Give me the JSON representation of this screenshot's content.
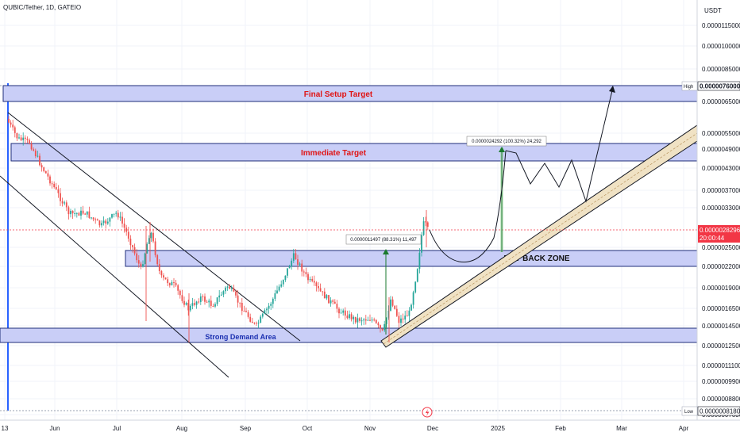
{
  "header": {
    "symbol_title": "QUBIC/Tether, 1D, GATEIO"
  },
  "price_axis": {
    "currency": "USDT",
    "ticks": [
      {
        "label": "0.0000115000",
        "value": 115
      },
      {
        "label": "0.0000100000",
        "value": 100
      },
      {
        "label": "0.0000085000",
        "value": 85
      },
      {
        "label": "0.0000076000",
        "value": 76
      },
      {
        "label": "0.0000065000",
        "value": 65
      },
      {
        "label": "0.0000055000",
        "value": 55
      },
      {
        "label": "0.0000049000",
        "value": 49
      },
      {
        "label": "0.0000043000",
        "value": 43
      },
      {
        "label": "0.0000037000",
        "value": 37
      },
      {
        "label": "0.0000033000",
        "value": 33
      },
      {
        "label": "0.0000025000",
        "value": 25
      },
      {
        "label": "0.0000022000",
        "value": 22
      },
      {
        "label": "0.0000019000",
        "value": 19
      },
      {
        "label": "0.0000016500",
        "value": 16.5
      },
      {
        "label": "0.0000014500",
        "value": 14.5
      },
      {
        "label": "0.0000012500",
        "value": 12.5
      },
      {
        "label": "0.0000011100",
        "value": 11.1
      },
      {
        "label": "0.0000009900",
        "value": 9.9
      },
      {
        "label": "0.0000008800",
        "value": 8.8
      },
      {
        "label": "0.0000007830",
        "value": 7.83
      }
    ],
    "high_label": "High",
    "high_value_label": "0.0000076000",
    "low_label": "Low",
    "low_value_label": "0.0000008180",
    "current_price_label": "0.0000028296",
    "countdown_label": "20:00:44",
    "current_price_color": "#f23645"
  },
  "time_axis": {
    "labels": [
      "13",
      "Jun",
      "Jul",
      "Aug",
      "Sep",
      "Oct",
      "Nov",
      "Dec",
      "2025",
      "Feb",
      "Mar",
      "Apr"
    ]
  },
  "zones": {
    "final_target": "Final Setup Target",
    "immediate_target": "Immediate Target",
    "buy_back": "BUY BACK ZONE",
    "demand": "Strong Demand Area"
  },
  "measurements": {
    "upper": "0.0000024292 (100.32%) 24,292",
    "lower": "0.0000011497 (88.31%) 11,497"
  },
  "colors": {
    "zone_fill": "#c9cef7",
    "zone_border": "#1f2d7a",
    "bull": "#26a69a",
    "bear": "#ef5350",
    "channel_fill": "#f0e2c4",
    "vertical_line": "#2962ff",
    "label_red": "#e01414",
    "label_blue": "#1a2fb0"
  },
  "chart_data": {
    "type": "candlestick",
    "title": "QUBIC/Tether, 1D, GATEIO",
    "y_scale": "log",
    "y_unit": "USDT",
    "ylim": [
      7.83e-07,
      1.15e-05
    ],
    "x_range": [
      "13 May 2024",
      "Apr 2025"
    ],
    "price_path": [
      {
        "x": "2024-05-13",
        "close": 6e-06
      },
      {
        "x": "2024-05-20",
        "close": 5.2e-06
      },
      {
        "x": "2024-06-01",
        "close": 3.8e-06
      },
      {
        "x": "2024-06-15",
        "close": 3.1e-06
      },
      {
        "x": "2024-07-01",
        "close": 2.9e-06
      },
      {
        "x": "2024-07-10",
        "close": 2.2e-06
      },
      {
        "x": "2024-07-20",
        "close": 1.8e-06
      },
      {
        "x": "2024-08-05",
        "close": 1.6e-06
      },
      {
        "x": "2024-08-20",
        "close": 1.6e-06
      },
      {
        "x": "2024-09-05",
        "close": 1.4e-06
      },
      {
        "x": "2024-09-20",
        "close": 1.6e-06
      },
      {
        "x": "2024-10-01",
        "close": 2.3e-06
      },
      {
        "x": "2024-10-15",
        "close": 1.7e-06
      },
      {
        "x": "2024-11-01",
        "close": 1.4e-06
      },
      {
        "x": "2024-11-10",
        "close": 1.4e-06
      },
      {
        "x": "2024-11-20",
        "close": 1.6e-06
      },
      {
        "x": "2024-11-27",
        "close": 2.8296e-06
      }
    ],
    "horizontal_zones": [
      {
        "name": "Final Setup Target",
        "top": 8e-06,
        "bottom": 6.8e-06
      },
      {
        "name": "Immediate Target",
        "top": 5e-06,
        "bottom": 4.3e-06
      },
      {
        "name": "BUY BACK ZONE",
        "top": 2.4e-06,
        "bottom": 2.1e-06
      },
      {
        "name": "Strong Demand Area",
        "top": 1.4e-06,
        "bottom": 1.2e-06
      }
    ],
    "annotations": [
      "0.0000024292 (100.32%) 24,292",
      "0.0000011497 (88.31%) 11,497"
    ],
    "grid": true,
    "legend": "none"
  }
}
